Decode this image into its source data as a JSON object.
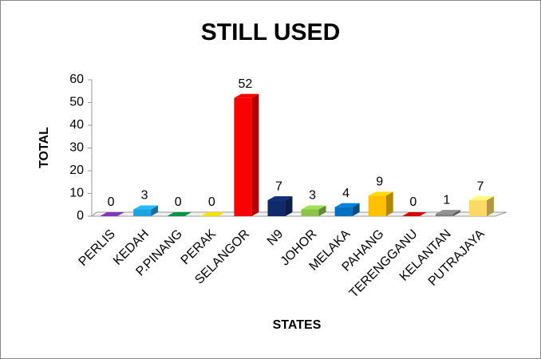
{
  "chart_data": {
    "type": "bar3d",
    "title": "STILL USED",
    "x_label": "STATES",
    "y_label": "TOTAL",
    "categories": [
      "PERLIS",
      "KEDAH",
      "P.PINANG",
      "PERAK",
      "SELANGOR",
      "N9",
      "JOHOR",
      "MELAKA",
      "PAHANG",
      "TERENGGANU",
      "KELANTAN",
      "PUTRAJAYA"
    ],
    "values": [
      0,
      3,
      0,
      0,
      52,
      7,
      3,
      4,
      9,
      0,
      1,
      7
    ],
    "colors": [
      "#7030a0",
      "#1fa3e0",
      "#00803c",
      "#d4c400",
      "#ff0000",
      "#0f2a6b",
      "#8cc34a",
      "#0070c0",
      "#ffc000",
      "#c00000",
      "#7f7f7f",
      "#ffd966"
    ],
    "ylim": [
      0,
      60
    ],
    "yticks": [
      0,
      10,
      20,
      30,
      40,
      50,
      60
    ]
  }
}
